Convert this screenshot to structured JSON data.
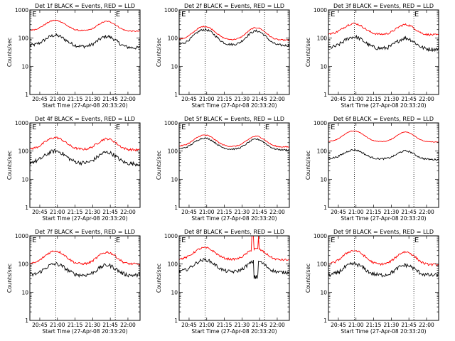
{
  "figure": {
    "background": "#ffffff",
    "axis_color": "#000000",
    "events_color": "#000000",
    "lld_color": "#ff0000"
  },
  "chart_data": [
    {
      "type": "line",
      "title": "Det 1f BLACK = Events, RED = LLD",
      "xlabel": "Start Time (27-Apr-08 20:33:20)",
      "ylabel": "Counts/sec",
      "xticks": [
        "20:45",
        "21:00",
        "21:15",
        "21:30",
        "21:45",
        "22:00"
      ],
      "yticks": [
        "1",
        "10",
        "100",
        "1000"
      ],
      "y_scale": "log",
      "ylim": [
        1,
        1000
      ],
      "flag_labels": [
        "E",
        "E"
      ],
      "series": [
        {
          "name": "Events",
          "color": "#000000",
          "base": 55,
          "peak": 125,
          "end": 45,
          "noise": 0.12
        },
        {
          "name": "LLD",
          "color": "#ff0000",
          "base": 190,
          "peak": 430,
          "end": 175,
          "noise": 0.04
        }
      ]
    },
    {
      "type": "line",
      "title": "Det 2f BLACK = Events, RED = LLD",
      "xlabel": "Start Time (27-Apr-08 20:33:20)",
      "ylabel": "Counts/sec",
      "xticks": [
        "20:45",
        "21:00",
        "21:15",
        "21:30",
        "21:45",
        "22:00"
      ],
      "yticks": [
        "1",
        "10",
        "100",
        "1000"
      ],
      "y_scale": "log",
      "ylim": [
        1,
        1000
      ],
      "flag_labels": [
        "E",
        "E"
      ],
      "series": [
        {
          "name": "Events",
          "color": "#000000",
          "base": 60,
          "peak": 200,
          "end": 55,
          "noise": 0.08
        },
        {
          "name": "LLD",
          "color": "#ff0000",
          "base": 90,
          "peak": 260,
          "end": 85,
          "noise": 0.04
        }
      ]
    },
    {
      "type": "line",
      "title": "Det 3f BLACK = Events, RED = LLD",
      "xlabel": "Start Time (27-Apr-08 20:33:20)",
      "ylabel": "Counts/sec",
      "xticks": [
        "20:45",
        "21:00",
        "21:15",
        "21:30",
        "21:45",
        "22:00"
      ],
      "yticks": [
        "1",
        "10",
        "100",
        "1000"
      ],
      "y_scale": "log",
      "ylim": [
        1,
        1000
      ],
      "flag_labels": [
        "E",
        "E"
      ],
      "series": [
        {
          "name": "Events",
          "color": "#000000",
          "base": 45,
          "peak": 110,
          "end": 40,
          "noise": 0.14
        },
        {
          "name": "LLD",
          "color": "#ff0000",
          "base": 140,
          "peak": 330,
          "end": 130,
          "noise": 0.07
        }
      ]
    },
    {
      "type": "line",
      "title": "Det 4f BLACK = Events, RED = LLD",
      "xlabel": "Start Time (27-Apr-08 20:33:20)",
      "ylabel": "Counts/sec",
      "xticks": [
        "20:45",
        "21:00",
        "21:15",
        "21:30",
        "21:45",
        "22:00"
      ],
      "yticks": [
        "1",
        "10",
        "100",
        "1000"
      ],
      "y_scale": "log",
      "ylim": [
        1,
        1000
      ],
      "flag_labels": [
        "E",
        "E"
      ],
      "series": [
        {
          "name": "Events",
          "color": "#000000",
          "base": 40,
          "peak": 100,
          "end": 35,
          "noise": 0.14
        },
        {
          "name": "LLD",
          "color": "#ff0000",
          "base": 120,
          "peak": 300,
          "end": 110,
          "noise": 0.08
        }
      ]
    },
    {
      "type": "line",
      "title": "Det 5f BLACK = Events, RED = LLD",
      "xlabel": "Start Time (27-Apr-08 20:33:20)",
      "ylabel": "Counts/sec",
      "xticks": [
        "20:45",
        "21:00",
        "21:15",
        "21:30",
        "21:45",
        "22:00"
      ],
      "yticks": [
        "1",
        "10",
        "100",
        "1000"
      ],
      "y_scale": "log",
      "ylim": [
        1,
        1000
      ],
      "flag_labels": [
        "E",
        "E"
      ],
      "series": [
        {
          "name": "Events",
          "color": "#000000",
          "base": 120,
          "peak": 290,
          "end": 110,
          "noise": 0.05
        },
        {
          "name": "LLD",
          "color": "#ff0000",
          "base": 150,
          "peak": 370,
          "end": 140,
          "noise": 0.04
        }
      ]
    },
    {
      "type": "line",
      "title": "Det 6f BLACK = Events, RED = LLD",
      "xlabel": "Start Time (27-Apr-08 20:33:20)",
      "ylabel": "Counts/sec",
      "xticks": [
        "20:45",
        "21:00",
        "21:15",
        "21:30",
        "21:45",
        "22:00"
      ],
      "yticks": [
        "1",
        "10",
        "100",
        "1000"
      ],
      "y_scale": "log",
      "ylim": [
        1,
        1000
      ],
      "flag_labels": [
        "E"
      ],
      "series": [
        {
          "name": "Events",
          "color": "#000000",
          "base": 55,
          "peak": 110,
          "end": 50,
          "noise": 0.06
        },
        {
          "name": "LLD",
          "color": "#ff0000",
          "base": 220,
          "peak": 520,
          "end": 210,
          "noise": 0.02
        }
      ]
    },
    {
      "type": "line",
      "title": "Det 7f BLACK = Events, RED = LLD",
      "xlabel": "Start Time (27-Apr-08 20:33:20)",
      "ylabel": "Counts/sec",
      "xticks": [
        "20:45",
        "21:00",
        "21:15",
        "21:30",
        "21:45",
        "22:00"
      ],
      "yticks": [
        "1",
        "10",
        "100",
        "1000"
      ],
      "y_scale": "log",
      "ylim": [
        1,
        1000
      ],
      "flag_labels": [
        "E",
        "E"
      ],
      "series": [
        {
          "name": "Events",
          "color": "#000000",
          "base": 40,
          "peak": 100,
          "end": 40,
          "noise": 0.14
        },
        {
          "name": "LLD",
          "color": "#ff0000",
          "base": 100,
          "peak": 290,
          "end": 100,
          "noise": 0.08
        }
      ]
    },
    {
      "type": "line",
      "title": "Det 8f BLACK = Events, RED = LLD",
      "xlabel": "Start Time (27-Apr-08 20:33:20)",
      "ylabel": "Counts/sec",
      "xticks": [
        "20:45",
        "21:00",
        "21:15",
        "21:30",
        "21:45",
        "22:00"
      ],
      "yticks": [
        "1",
        "10",
        "100",
        "1000"
      ],
      "y_scale": "log",
      "ylim": [
        1,
        1000
      ],
      "flag_labels": [
        "E"
      ],
      "spikes": [
        {
          "series": "LLD",
          "start_fraction": 0.66,
          "end_fraction": 0.675,
          "value": 1000
        },
        {
          "series": "LLD",
          "start_fraction": 0.715,
          "end_fraction": 0.722,
          "value": 1000
        }
      ],
      "gap": {
        "start_fraction": 0.675,
        "end_fraction": 0.715,
        "events_low": 30
      },
      "series": [
        {
          "name": "Events",
          "color": "#000000",
          "base": 55,
          "peak": 140,
          "end": 50,
          "noise": 0.12
        },
        {
          "name": "LLD",
          "color": "#ff0000",
          "base": 150,
          "peak": 380,
          "end": 140,
          "noise": 0.07
        }
      ]
    },
    {
      "type": "line",
      "title": "Det 9f BLACK = Events, RED = LLD",
      "xlabel": "Start Time (27-Apr-08 20:33:20)",
      "ylabel": "Counts/sec",
      "xticks": [
        "20:45",
        "21:00",
        "21:15",
        "21:30",
        "21:45",
        "22:00"
      ],
      "yticks": [
        "1",
        "10",
        "100",
        "1000"
      ],
      "y_scale": "log",
      "ylim": [
        1,
        1000
      ],
      "flag_labels": [
        "E",
        "E"
      ],
      "series": [
        {
          "name": "Events",
          "color": "#000000",
          "base": 40,
          "peak": 100,
          "end": 40,
          "noise": 0.14
        },
        {
          "name": "LLD",
          "color": "#ff0000",
          "base": 100,
          "peak": 300,
          "end": 95,
          "noise": 0.08
        }
      ]
    }
  ]
}
